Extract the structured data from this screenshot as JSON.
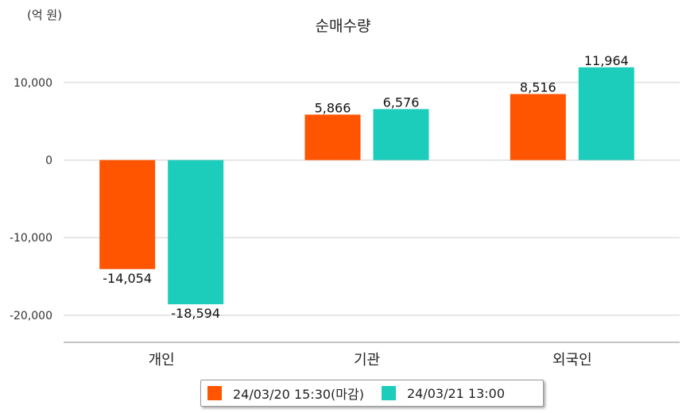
{
  "unit_label": "(억 원)",
  "colors": {
    "series1": "#ff5500",
    "series2": "#1ccdbb",
    "grid": "#cfcfcf",
    "axis": "#888888"
  },
  "chart_data": {
    "type": "bar",
    "title": "순매수량",
    "categories": [
      "개인",
      "기관",
      "외국인"
    ],
    "series": [
      {
        "name": "24/03/20 15:30(마감)",
        "values": [
          -14054,
          5866,
          8516
        ]
      },
      {
        "name": "24/03/21 13:00",
        "values": [
          -18594,
          6576,
          11964
        ]
      }
    ],
    "value_labels": [
      [
        "-14,054",
        "5,866",
        "8,516"
      ],
      [
        "-18,594",
        "6,576",
        "11,964"
      ]
    ],
    "yticks": [
      10000,
      0,
      -10000,
      -20000
    ],
    "ytick_labels": [
      "10,000",
      "0",
      "-10,000",
      "-20,000"
    ],
    "ylim": [
      -23500,
      14500
    ],
    "grid": true,
    "legend_position": "bottom"
  }
}
